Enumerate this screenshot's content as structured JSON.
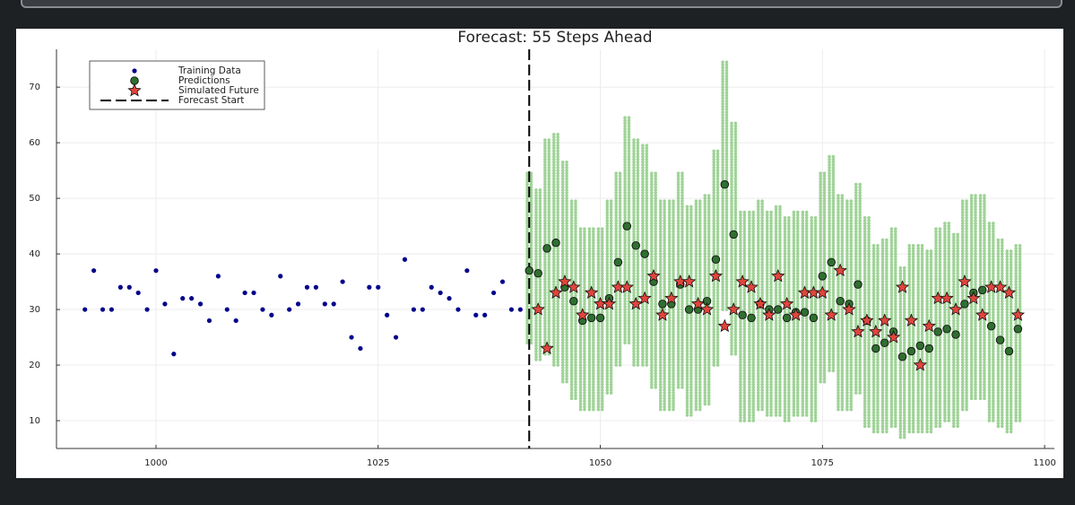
{
  "chart_data": {
    "type": "forecast_scatter",
    "title": "Forecast: 55 Steps Ahead",
    "xlim": [
      988.8,
      1101.1
    ],
    "ylim": [
      5,
      76.8
    ],
    "xticks": [
      1000,
      1025,
      1050,
      1075,
      1100
    ],
    "yticks": [
      10,
      20,
      30,
      40,
      50,
      60,
      70
    ],
    "grid": true,
    "legend_position": "top-left",
    "sample_bands": {
      "color": "#8fcc85",
      "x": [
        1042,
        1043,
        1044,
        1045,
        1046,
        1047,
        1048,
        1049,
        1050,
        1051,
        1052,
        1053,
        1054,
        1055,
        1056,
        1057,
        1058,
        1059,
        1060,
        1061,
        1062,
        1063,
        1064,
        1065,
        1066,
        1067,
        1068,
        1069,
        1070,
        1071,
        1072,
        1073,
        1074,
        1075,
        1076,
        1077,
        1078,
        1079,
        1080,
        1081,
        1082,
        1083,
        1084,
        1085,
        1086,
        1087,
        1088,
        1089,
        1090,
        1091,
        1092,
        1093,
        1094,
        1095,
        1096,
        1097
      ],
      "low": [
        24,
        21,
        22,
        20,
        17,
        14,
        12,
        12,
        12,
        15,
        20,
        24,
        20,
        20,
        16,
        12,
        12,
        16,
        11,
        12,
        13,
        20,
        30,
        22,
        10,
        10,
        12,
        11,
        11,
        10,
        11,
        11,
        10,
        17,
        19,
        12,
        12,
        15,
        9,
        8,
        8,
        9,
        7,
        8,
        8,
        8,
        9,
        10,
        9,
        12,
        14,
        14,
        10,
        9,
        8,
        10
      ],
      "high": [
        55,
        52,
        61,
        62,
        57,
        50,
        45,
        45,
        45,
        50,
        55,
        65,
        61,
        60,
        55,
        50,
        50,
        55,
        49,
        50,
        51,
        59,
        75,
        64,
        48,
        48,
        50,
        48,
        49,
        47,
        48,
        48,
        47,
        55,
        58,
        51,
        50,
        53,
        47,
        42,
        43,
        45,
        38,
        42,
        42,
        41,
        45,
        46,
        44,
        50,
        51,
        51,
        46,
        43,
        41,
        42
      ]
    },
    "series": [
      {
        "name": "Training Data",
        "color": "#00008b",
        "marker": "dot",
        "x": [
          992,
          993,
          994,
          995,
          996,
          997,
          998,
          999,
          1000,
          1001,
          1002,
          1003,
          1004,
          1005,
          1006,
          1007,
          1008,
          1009,
          1010,
          1011,
          1012,
          1013,
          1014,
          1015,
          1016,
          1017,
          1018,
          1019,
          1020,
          1021,
          1022,
          1023,
          1024,
          1025,
          1026,
          1027,
          1028,
          1029,
          1030,
          1031,
          1032,
          1033,
          1034,
          1035,
          1036,
          1037,
          1038,
          1039,
          1040,
          1041
        ],
        "values": [
          30,
          37,
          30,
          30,
          34,
          34,
          33,
          30,
          37,
          31,
          22,
          32,
          32,
          31,
          28,
          36,
          30,
          28,
          33,
          33,
          30,
          29,
          36,
          30,
          31,
          34,
          34,
          31,
          31,
          35,
          25,
          23,
          34,
          34,
          29,
          25,
          39,
          30,
          30,
          34,
          33,
          32,
          30,
          37,
          29,
          29,
          33,
          35,
          30,
          30
        ]
      },
      {
        "name": "Predictions",
        "color": "#2f6f2f",
        "marker": "circle",
        "x": [
          1042,
          1043,
          1044,
          1045,
          1046,
          1047,
          1048,
          1049,
          1050,
          1051,
          1052,
          1053,
          1054,
          1055,
          1056,
          1057,
          1058,
          1059,
          1060,
          1061,
          1062,
          1063,
          1064,
          1065,
          1066,
          1067,
          1068,
          1069,
          1070,
          1071,
          1072,
          1073,
          1074,
          1075,
          1076,
          1077,
          1078,
          1079,
          1080,
          1081,
          1082,
          1083,
          1084,
          1085,
          1086,
          1087,
          1088,
          1089,
          1090,
          1091,
          1092,
          1093,
          1094,
          1095,
          1096,
          1097
        ],
        "values": [
          37,
          36.5,
          41,
          42,
          34,
          31.5,
          28,
          28.5,
          28.5,
          32,
          38.5,
          45,
          41.5,
          40,
          35,
          31,
          31,
          34.5,
          30,
          30,
          31.5,
          39,
          52.5,
          43.5,
          29,
          28.5,
          31,
          30,
          30,
          28.5,
          29.5,
          29.5,
          28.5,
          36,
          38.5,
          31.5,
          31,
          34.5,
          28,
          23,
          24,
          26,
          21.5,
          22.5,
          23.5,
          23,
          26,
          26.5,
          25.5,
          31,
          33,
          33.5,
          27,
          24.5,
          22.5,
          26.5
        ]
      },
      {
        "name": "Simulated Future",
        "color": "#e0453b",
        "marker": "star",
        "x": [
          1043,
          1044,
          1045,
          1046,
          1047,
          1048,
          1049,
          1050,
          1051,
          1052,
          1053,
          1054,
          1055,
          1056,
          1057,
          1058,
          1059,
          1060,
          1061,
          1062,
          1063,
          1064,
          1065,
          1066,
          1067,
          1068,
          1069,
          1070,
          1071,
          1072,
          1073,
          1074,
          1075,
          1076,
          1077,
          1078,
          1079,
          1080,
          1081,
          1082,
          1083,
          1084,
          1085,
          1086,
          1087,
          1088,
          1089,
          1090,
          1091,
          1092,
          1093,
          1094,
          1095,
          1096,
          1097
        ],
        "values": [
          30,
          23,
          33,
          35,
          34,
          29,
          33,
          31,
          31,
          34,
          34,
          31,
          32,
          36,
          29,
          32,
          35,
          35,
          31,
          30,
          36,
          27,
          30,
          35,
          34,
          31,
          29,
          36,
          31,
          29,
          33,
          33,
          33,
          29,
          37,
          30,
          26,
          28,
          26,
          28,
          25,
          34,
          28,
          20,
          27,
          32,
          32,
          30,
          35,
          32,
          29,
          34,
          34,
          33,
          29
        ]
      }
    ],
    "forecast_start": {
      "name": "Forecast Start",
      "x": 1042,
      "color": "#000000"
    }
  }
}
